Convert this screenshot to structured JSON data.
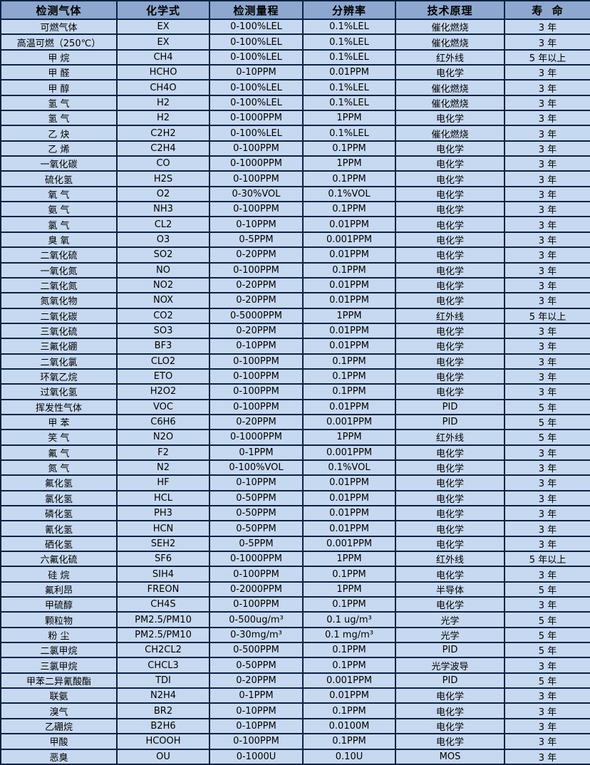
{
  "table": {
    "columns": [
      "检测气体",
      "化学式",
      "检测量程",
      "分辨率",
      "技术原理",
      "寿  命"
    ],
    "rows": [
      [
        "可燃气体",
        "EX",
        "0-100%LEL",
        "0.1%LEL",
        "催化燃烧",
        "3 年"
      ],
      [
        "高温可燃（250℃）",
        "EX",
        "0-100%LEL",
        "0.1%LEL",
        "催化燃烧",
        "3 年"
      ],
      [
        "甲 烷",
        "CH4",
        "0-100%LEL",
        "0.1%LEL",
        "红外线",
        "5 年以上"
      ],
      [
        "甲 醛",
        "HCHO",
        "0-10PPM",
        "0.01PPM",
        "电化学",
        "3 年"
      ],
      [
        "甲 醇",
        "CH4O",
        "0-100%LEL",
        "0.1%LEL",
        "催化燃烧",
        "3 年"
      ],
      [
        "氢 气",
        "H2",
        "0-100%LEL",
        "0.1%LEL",
        "催化燃烧",
        "3 年"
      ],
      [
        "氢 气",
        "H2",
        "0-1000PPM",
        "1PPM",
        "电化学",
        "3 年"
      ],
      [
        "乙 炔",
        "C2H2",
        "0-100%LEL",
        "0.1%LEL",
        "催化燃烧",
        "3 年"
      ],
      [
        "乙 烯",
        "C2H4",
        "0-100PPM",
        "0.1PPM",
        "电化学",
        "3 年"
      ],
      [
        "一氧化碳",
        "CO",
        "0-1000PPM",
        "1PPM",
        "电化学",
        "3 年"
      ],
      [
        "硫化氢",
        "H2S",
        "0-100PPM",
        "0.1PPM",
        "电化学",
        "3 年"
      ],
      [
        "氧 气",
        "O2",
        "0-30%VOL",
        "0.1%VOL",
        "电化学",
        "3 年"
      ],
      [
        "氨 气",
        "NH3",
        "0-100PPM",
        "0.1PPM",
        "电化学",
        "3 年"
      ],
      [
        "氯 气",
        "CL2",
        "0-10PPM",
        "0.01PPM",
        "电化学",
        "3 年"
      ],
      [
        "臭 氧",
        "O3",
        "0-5PPM",
        "0.001PPM",
        "电化学",
        "3 年"
      ],
      [
        "二氧化硫",
        "SO2",
        "0-20PPM",
        "0.01PPM",
        "电化学",
        "3 年"
      ],
      [
        "一氧化氮",
        "NO",
        "0-100PPM",
        "0.1PPM",
        "电化学",
        "3 年"
      ],
      [
        "二氧化氮",
        "NO2",
        "0-20PPM",
        "0.01PPM",
        "电化学",
        "3 年"
      ],
      [
        "氮氧化物",
        "NOX",
        "0-20PPM",
        "0.01PPM",
        "电化学",
        "3 年"
      ],
      [
        "二氧化碳",
        "CO2",
        "0-5000PPM",
        "1PPM",
        "红外线",
        "5 年以上"
      ],
      [
        "三氧化硫",
        "SO3",
        "0-20PPM",
        "0.01PPM",
        "电化学",
        "3 年"
      ],
      [
        "三氟化硼",
        "BF3",
        "0-10PPM",
        "0.01PPM",
        "电化学",
        "3 年"
      ],
      [
        "二氧化氯",
        "CLO2",
        "0-100PPM",
        "0.1PPM",
        "电化学",
        "3 年"
      ],
      [
        "环氧乙烷",
        "ETO",
        "0-100PPM",
        "0.1PPM",
        "电化学",
        "3 年"
      ],
      [
        "过氧化氢",
        "H2O2",
        "0-100PPM",
        "0.1PPM",
        "电化学",
        "3 年"
      ],
      [
        "挥发性气体",
        "VOC",
        "0-100PPM",
        "0.01PPM",
        "PID",
        "5 年"
      ],
      [
        "甲 苯",
        "C6H6",
        "0-20PPM",
        "0.001PPM",
        "PID",
        "5 年"
      ],
      [
        "笑 气",
        "N2O",
        "0-1000PPM",
        "1PPM",
        "红外线",
        "5 年"
      ],
      [
        "氟 气",
        "F2",
        "0-1PPM",
        "0.001PPM",
        "电化学",
        "3 年"
      ],
      [
        "氮 气",
        "N2",
        "0-100%VOL",
        "0.1%VOL",
        "电化学",
        "3 年"
      ],
      [
        "氟化氢",
        "HF",
        "0-10PPM",
        "0.01PPM",
        "电化学",
        "3 年"
      ],
      [
        "氯化氢",
        "HCL",
        "0-50PPM",
        "0.01PPM",
        "电化学",
        "3 年"
      ],
      [
        "磷化氢",
        "PH3",
        "0-50PPM",
        "0.01PPM",
        "电化学",
        "3 年"
      ],
      [
        "氰化氢",
        "HCN",
        "0-50PPM",
        "0.01PPM",
        "电化学",
        "3 年"
      ],
      [
        "硒化氢",
        "SEH2",
        "0-5PPM",
        "0.001PPM",
        "电化学",
        "3 年"
      ],
      [
        "六氟化硫",
        "SF6",
        "0-1000PPM",
        "1PPM",
        "红外线",
        "5 年以上"
      ],
      [
        "硅 烷",
        "SIH4",
        "0-100PPM",
        "0.1PPM",
        "电化学",
        "3 年"
      ],
      [
        "氟利昂",
        "FREON",
        "0-2000PPM",
        "1PPM",
        "半导体",
        "5 年"
      ],
      [
        "甲硫醇",
        "CH4S",
        "0-100PPM",
        "0.1PPM",
        "电化学",
        "3 年"
      ],
      [
        "颗粒物",
        "PM2.5/PM10",
        "0-500ug/m³",
        "0.1 ug/m³",
        "光学",
        "5 年"
      ],
      [
        "粉 尘",
        "PM2.5/PM10",
        "0-30mg/m³",
        "0.1 mg/m³",
        "光学",
        "5 年"
      ],
      [
        "二氯甲烷",
        "CH2CL2",
        "0-500PPM",
        "0.1PPM",
        "PID",
        "5 年"
      ],
      [
        "三氯甲烷",
        "CHCL3",
        "0-50PPM",
        "0.1PPM",
        "光学波导",
        "3 年"
      ],
      [
        "甲苯二异氰酸酯",
        "TDI",
        "0-20PPM",
        "0.001PPM",
        "PID",
        "5 年"
      ],
      [
        "联氨",
        "N2H4",
        "0-1PPM",
        "0.01PPM",
        "电化学",
        "3 年"
      ],
      [
        "溴气",
        "BR2",
        "0-10PPM",
        "0.1PPM",
        "电化学",
        "3 年"
      ],
      [
        "乙硼烷",
        "B2H6",
        "0-10PPM",
        "0.0100M",
        "电化学",
        "3 年"
      ],
      [
        "甲酸",
        "HCOOH",
        "0-100PPM",
        "0.1PPM",
        "电化学",
        "3 年"
      ],
      [
        "恶臭",
        "OU",
        "0-1000U",
        "0.10U",
        "MOS",
        "3 年"
      ]
    ],
    "colors": {
      "header_bg": "#8da7cf",
      "row_bg": "#c7d9f1",
      "border": "#0c2243",
      "text": "#000000"
    }
  }
}
